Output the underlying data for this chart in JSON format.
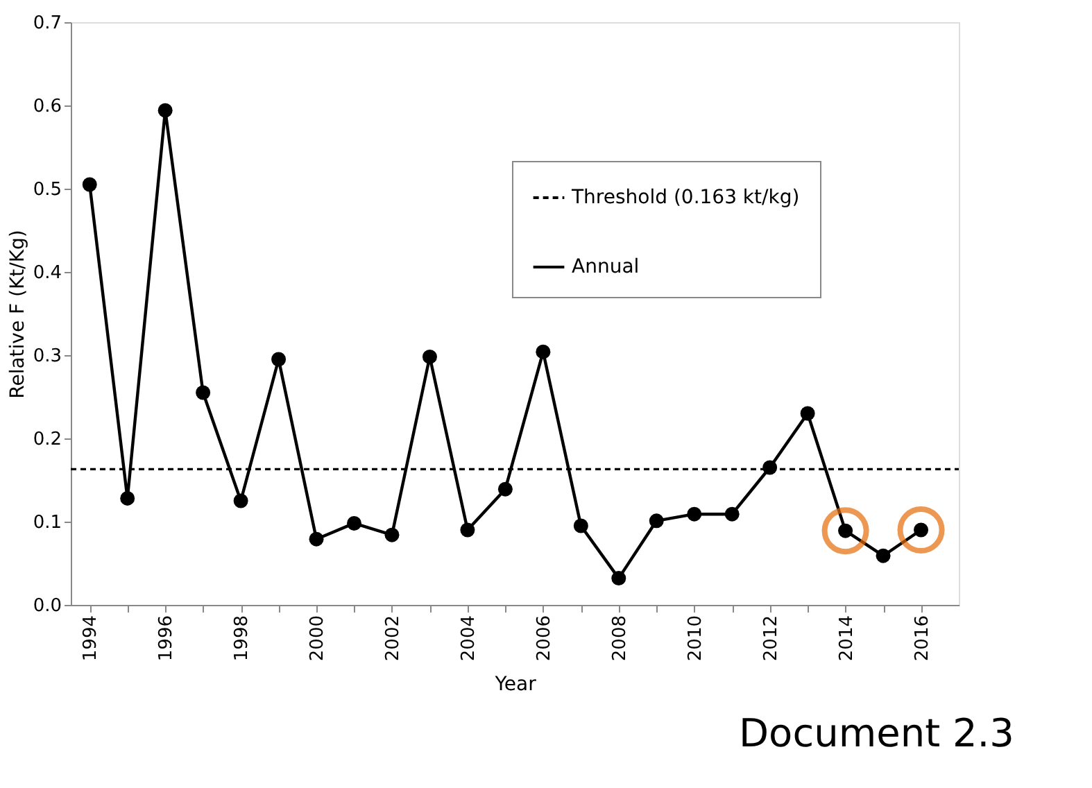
{
  "chart_data": {
    "type": "line",
    "xlabel": "Year",
    "ylabel": "Relative F (Kt/Kg)",
    "x": [
      1994,
      1995,
      1996,
      1997,
      1998,
      1999,
      2000,
      2001,
      2002,
      2003,
      2004,
      2005,
      2006,
      2007,
      2008,
      2009,
      2010,
      2011,
      2012,
      2013,
      2014,
      2015,
      2016
    ],
    "series": [
      {
        "name": "Annual",
        "color": "#000000",
        "marker": "circle",
        "line_style": "solid",
        "values": [
          0.505,
          0.128,
          0.594,
          0.255,
          0.125,
          0.295,
          0.079,
          0.098,
          0.084,
          0.298,
          0.09,
          0.139,
          0.304,
          0.095,
          0.032,
          0.101,
          0.109,
          0.109,
          0.165,
          0.23,
          0.089,
          0.059,
          0.09
        ]
      },
      {
        "type": "scatter",
        "color": "#e46c0a",
        "marker": "circle",
        "x": [
          2014,
          2016
        ],
        "values": [
          0.089,
          0.09
        ]
      }
    ],
    "ref_lines": [
      {
        "axis": "y",
        "value": 0.163,
        "label": "Threshold (0.163 kt/kg)",
        "color": "#000000",
        "line_style": "dashed"
      }
    ],
    "xlim": [
      1993.5,
      2017
    ],
    "xticks": [
      1994,
      {
        "value": 1995,
        "label": null
      },
      1996,
      {
        "value": 1997,
        "label": null
      },
      1998,
      {
        "value": 1999,
        "label": null
      },
      2000,
      {
        "value": 2001,
        "label": null
      },
      2002,
      {
        "value": 2003,
        "label": null
      },
      2004,
      {
        "value": 2005,
        "label": null
      },
      2006,
      {
        "value": 2007,
        "label": null
      },
      2008,
      {
        "value": 2009,
        "label": null
      },
      2010,
      {
        "value": 2011,
        "label": null
      },
      2012,
      {
        "value": 2013,
        "label": null
      },
      2014,
      {
        "value": 2015,
        "label": null
      },
      2016
    ],
    "ylim": [
      0,
      0.7
    ],
    "yticks": [
      {
        "value": 0,
        "label": "0.0"
      },
      0.1,
      0.2,
      0.3,
      0.4,
      0.5,
      0.6,
      0.7
    ],
    "grid": false,
    "legend": "top right",
    "annotations": [
      "Document 2.3"
    ]
  }
}
